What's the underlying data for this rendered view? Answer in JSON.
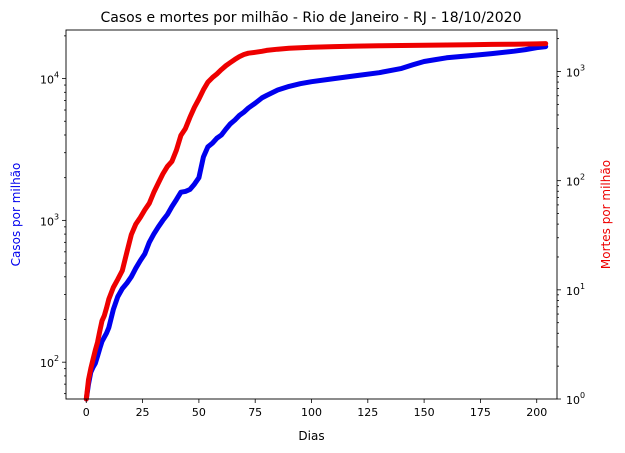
{
  "chart_data": {
    "type": "line",
    "title": "Casos e mortes por milhão - Rio de Janeiro - RJ - 18/10/2020",
    "xlabel": "Dias",
    "ylabel_left": "Casos por milhão",
    "ylabel_right": "Mortes por milhão",
    "xlim": [
      -9,
      209
    ],
    "ylim_left": [
      55,
      22000
    ],
    "ylim_right": [
      1,
      2400
    ],
    "yscale_left": "log",
    "yscale_right": "log",
    "grid": false,
    "legend": "none",
    "x_ticks": [
      0,
      25,
      50,
      75,
      100,
      125,
      150,
      175,
      200
    ],
    "y_left_ticks": [
      {
        "value": 100,
        "base": "10",
        "exp": "2"
      },
      {
        "value": 1000,
        "base": "10",
        "exp": "3"
      },
      {
        "value": 10000,
        "base": "10",
        "exp": "4"
      }
    ],
    "y_right_ticks": [
      {
        "value": 1,
        "base": "10",
        "exp": "0"
      },
      {
        "value": 10,
        "base": "10",
        "exp": "1"
      },
      {
        "value": 100,
        "base": "10",
        "exp": "2"
      },
      {
        "value": 1000,
        "base": "10",
        "exp": "3"
      }
    ],
    "colors": {
      "cases": "#0000ee",
      "deaths": "#ee0000"
    },
    "series": [
      {
        "axis": "left",
        "color": "#0000ee",
        "x": [
          0,
          1,
          2,
          3,
          4,
          5,
          6,
          7,
          8,
          9,
          10,
          12,
          14,
          16,
          18,
          20,
          22,
          24,
          26,
          28,
          30,
          32,
          34,
          36,
          38,
          40,
          42,
          44,
          46,
          48,
          50,
          52,
          54,
          56,
          58,
          60,
          62,
          64,
          66,
          68,
          70,
          72,
          75,
          78,
          80,
          85,
          90,
          95,
          100,
          110,
          120,
          130,
          140,
          145,
          150,
          155,
          160,
          170,
          180,
          190,
          195,
          200,
          204
        ],
        "y": [
          55,
          70,
          85,
          92,
          98,
          110,
          125,
          140,
          150,
          160,
          175,
          235,
          290,
          330,
          360,
          400,
          460,
          520,
          580,
          700,
          800,
          900,
          1000,
          1100,
          1250,
          1400,
          1580,
          1600,
          1650,
          1800,
          2000,
          2800,
          3300,
          3500,
          3800,
          4000,
          4400,
          4800,
          5100,
          5500,
          5800,
          6200,
          6700,
          7300,
          7600,
          8300,
          8800,
          9200,
          9500,
          10000,
          10500,
          11000,
          11800,
          12500,
          13200,
          13600,
          14000,
          14500,
          15000,
          15600,
          16000,
          16500,
          16800
        ]
      },
      {
        "axis": "right",
        "color": "#ee0000",
        "x": [
          0,
          1,
          2,
          3,
          4,
          5,
          6,
          7,
          8,
          9,
          10,
          12,
          14,
          16,
          18,
          20,
          22,
          24,
          26,
          28,
          30,
          32,
          34,
          36,
          38,
          40,
          42,
          44,
          46,
          48,
          50,
          52,
          54,
          56,
          58,
          60,
          62,
          64,
          66,
          68,
          70,
          72,
          75,
          78,
          80,
          85,
          90,
          95,
          100,
          110,
          120,
          130,
          140,
          150,
          160,
          170,
          180,
          190,
          200,
          204
        ],
        "y": [
          1.0,
          1.5,
          1.9,
          2.3,
          2.8,
          3.3,
          4.2,
          5.2,
          5.8,
          6.8,
          8.2,
          10.5,
          12.5,
          15.0,
          22.0,
          32.0,
          40.0,
          46.0,
          54.0,
          62.0,
          78.0,
          95.0,
          115.0,
          135.0,
          150.0,
          190.0,
          260.0,
          300.0,
          380.0,
          470.0,
          560.0,
          680.0,
          800.0,
          880.0,
          950.0,
          1040.0,
          1130.0,
          1210.0,
          1290.0,
          1370.0,
          1430.0,
          1470.0,
          1500.0,
          1530.0,
          1560.0,
          1600.0,
          1630.0,
          1650.0,
          1670.0,
          1690.0,
          1710.0,
          1720.0,
          1730.0,
          1740.0,
          1750.0,
          1760.0,
          1770.0,
          1780.0,
          1790.0,
          1800.0
        ]
      }
    ]
  }
}
